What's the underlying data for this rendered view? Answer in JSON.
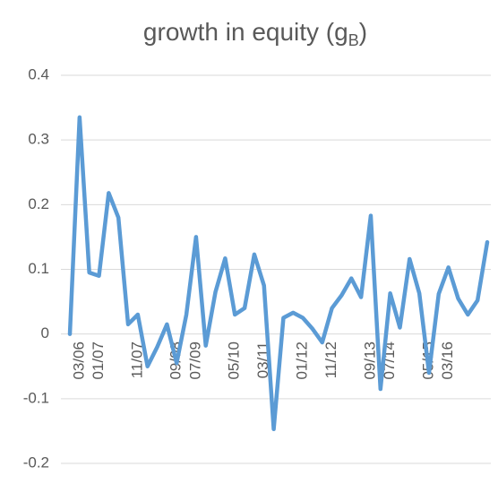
{
  "chart_data": {
    "type": "line",
    "title": "growth in equity (g",
    "title_subscript": "B",
    "title_suffix": ")",
    "categories": [
      null,
      "03/06",
      null,
      "01/07",
      null,
      null,
      null,
      "11/07",
      null,
      null,
      null,
      "09/08",
      null,
      "07/09",
      null,
      null,
      null,
      "05/10",
      null,
      null,
      "03/11",
      null,
      null,
      null,
      "01/12",
      null,
      null,
      "11/12",
      null,
      null,
      null,
      "09/13",
      null,
      "07/14",
      null,
      null,
      null,
      "05/15",
      null,
      "03/16",
      null,
      null,
      null,
      null
    ],
    "values": [
      0,
      0.335,
      0.095,
      0.09,
      0.218,
      0.18,
      0.015,
      0.03,
      -0.05,
      -0.02,
      0.015,
      -0.045,
      0.03,
      0.15,
      -0.018,
      0.065,
      0.117,
      0.03,
      0.04,
      0.123,
      0.075,
      -0.147,
      0.025,
      0.033,
      0.025,
      0.008,
      -0.013,
      0.04,
      0.06,
      0.086,
      0.057,
      0.183,
      -0.085,
      0.063,
      0.01,
      0.116,
      0.063,
      -0.06,
      0.062,
      0.103,
      0.055,
      0.03,
      0.052,
      0.142
    ],
    "color": "#5b9bd5",
    "ylim": [
      -0.2,
      0.4
    ],
    "yticks": [
      -0.2,
      -0.1,
      0,
      0.1,
      0.2,
      0.3,
      0.4
    ],
    "grid": true
  }
}
